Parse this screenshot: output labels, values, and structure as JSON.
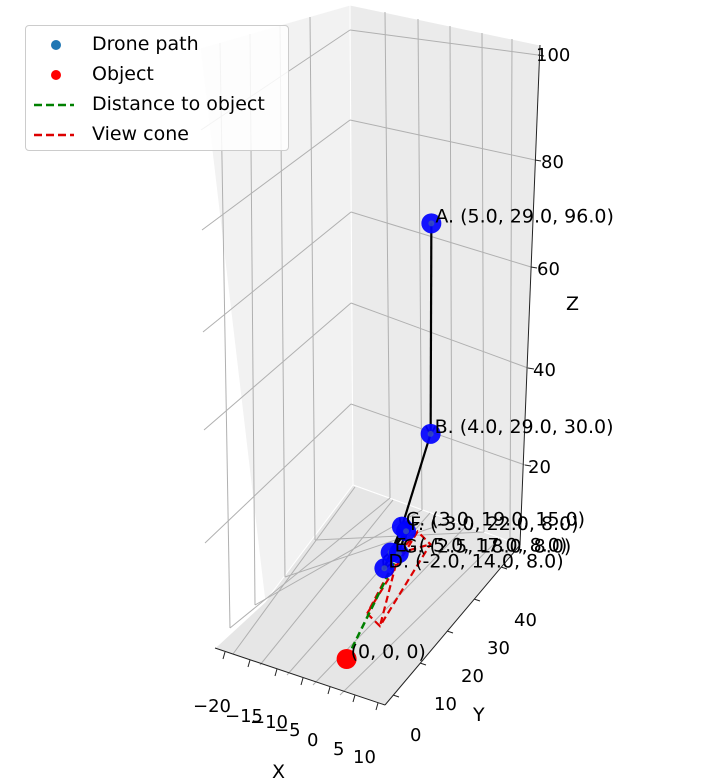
{
  "chart_data": {
    "type": "scatter3d",
    "xlabel": "X",
    "ylabel": "Y",
    "zlabel": "Z",
    "xlim": [
      -20,
      10
    ],
    "ylim": [
      0,
      40
    ],
    "zlim": [
      0,
      100
    ],
    "xticks": [
      -20,
      -15,
      -10,
      -5,
      0,
      5,
      10
    ],
    "xtick_labels": [
      "−20",
      "−15",
      "−10",
      "−5",
      "0",
      "5",
      "10"
    ],
    "yticks": [
      0,
      10,
      20,
      30,
      40
    ],
    "ytick_labels": [
      "0",
      "10",
      "20",
      "30",
      "40"
    ],
    "zticks": [
      20,
      40,
      60,
      80,
      100
    ],
    "ztick_labels": [
      "20",
      "40",
      "60",
      "80",
      "100"
    ],
    "grid": true,
    "legend_position": "top-left",
    "legend": [
      {
        "label": "Drone path",
        "kind": "dot",
        "color": "#1f77b4"
      },
      {
        "label": "Object",
        "kind": "dot",
        "color": "#ff0000"
      },
      {
        "label": "Distance to object",
        "kind": "dash",
        "color": "#008000"
      },
      {
        "label": "View cone",
        "kind": "dash",
        "color": "#ff0000"
      }
    ],
    "drone_points": [
      {
        "label": "A. (5.0, 29.0, 96.0)",
        "x": 5.0,
        "y": 29.0,
        "z": 96.0
      },
      {
        "label": "B. (4.0, 29.0, 30.0)",
        "x": 4.0,
        "y": 29.0,
        "z": 30.0
      },
      {
        "label": "C. (3.0, 19.0, 15.0)",
        "x": 3.0,
        "y": 19.0,
        "z": 15.0
      },
      {
        "label": "D. (-2.0, 14.0, 8.0)",
        "x": -2.0,
        "y": 14.0,
        "z": 8.0
      },
      {
        "label": "E. (-5.0, 17.0, 8.0)",
        "x": -5.0,
        "y": 17.0,
        "z": 8.0
      },
      {
        "label": "F. (-3.0, 22.0, 8.0)",
        "x": -3.0,
        "y": 22.0,
        "z": 8.0
      },
      {
        "label": "G. (2.5, 18.0, 8.0)",
        "x": 2.5,
        "y": 18.0,
        "z": 8.0
      }
    ],
    "object_point": {
      "label": "(0, 0, 0)",
      "x": 0,
      "y": 0,
      "z": 0
    },
    "colors": {
      "drone_marker": "#0000ff",
      "object_marker": "#ff0000",
      "path_arrow": "#000000",
      "distance_line": "#008000",
      "view_cone": "#dd0000"
    }
  }
}
